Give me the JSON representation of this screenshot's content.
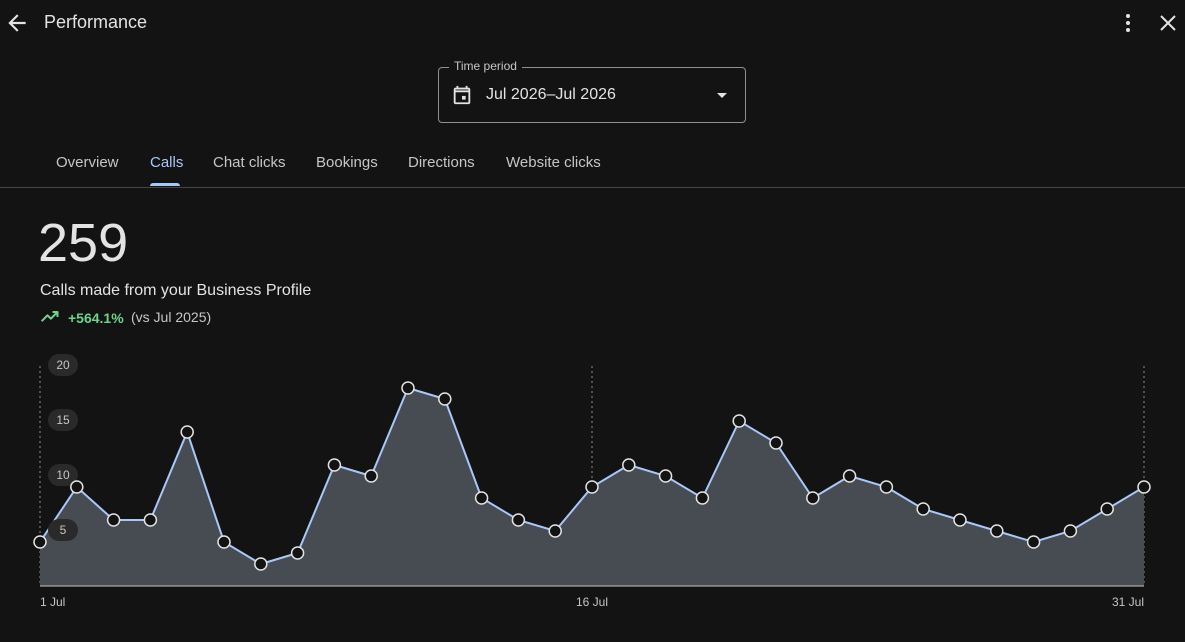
{
  "header": {
    "title": "Performance",
    "back_icon": "arrow-back-icon",
    "more_icon": "more-vert-icon",
    "close_icon": "close-icon"
  },
  "time_period": {
    "label": "Time period",
    "value": "Jul 2026–Jul 2026",
    "icon": "calendar-icon"
  },
  "tabs": [
    {
      "label": "Overview",
      "active": false
    },
    {
      "label": "Calls",
      "active": true
    },
    {
      "label": "Chat clicks",
      "active": false
    },
    {
      "label": "Bookings",
      "active": false
    },
    {
      "label": "Directions",
      "active": false
    },
    {
      "label": "Website clicks",
      "active": false
    }
  ],
  "metric": {
    "value": "259",
    "label": "Calls made from your Business Profile",
    "change": "+564.1%",
    "comparison": "(vs Jul 2025)"
  },
  "colors": {
    "accent": "#a8c7fa",
    "positive": "#6dd58c",
    "background": "#131313",
    "area": "#474b52"
  },
  "chart_data": {
    "type": "area",
    "x": [
      1,
      2,
      3,
      4,
      5,
      6,
      7,
      8,
      9,
      10,
      11,
      12,
      13,
      14,
      15,
      16,
      17,
      18,
      19,
      20,
      21,
      22,
      23,
      24,
      25,
      26,
      27,
      28,
      29,
      30,
      31
    ],
    "values": [
      4,
      9,
      6,
      6,
      14,
      4,
      2,
      3,
      11,
      10,
      18,
      17,
      8,
      6,
      5,
      9,
      11,
      10,
      8,
      15,
      13,
      8,
      10,
      9,
      7,
      6,
      5,
      4,
      5,
      7,
      9
    ],
    "ylim": [
      0,
      20
    ],
    "yticks": [
      "5",
      "10",
      "15",
      "20"
    ],
    "xticks": [
      "1 Jul",
      "16 Jul",
      "31 Jul"
    ],
    "grid": "vertical dotted lines at 1 Jul, 16 Jul, 31 Jul"
  }
}
